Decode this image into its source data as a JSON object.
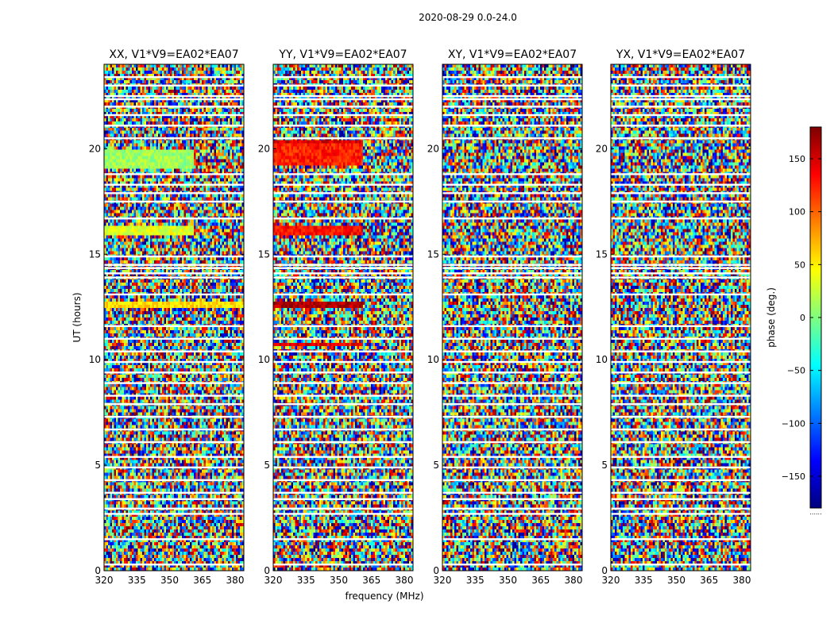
{
  "chart_data": {
    "type": "heatmap",
    "suptitle": "2020-08-29 0.0-24.0",
    "xlabel": "frequency (MHz)",
    "ylabel": "UT (hours)",
    "xlim": [
      320,
      384
    ],
    "ylim": [
      0,
      24
    ],
    "x_ticks": [
      320,
      335,
      350,
      365,
      380
    ],
    "y_ticks": [
      0,
      5,
      10,
      15,
      20
    ],
    "panels": [
      {
        "title": "XX, V1*V9=EA02*EA07",
        "coherent_bands": [
          {
            "ut": [
              19.0,
              20.0
            ],
            "freq": [
              320,
              361
            ],
            "phase": 10
          },
          {
            "ut": [
              15.9,
              16.3
            ],
            "freq": [
              320,
              361
            ],
            "phase": 35
          },
          {
            "ut": [
              12.4,
              12.7
            ],
            "freq": [
              320,
              384
            ],
            "phase": 55
          }
        ]
      },
      {
        "title": "YY, V1*V9=EA02*EA07",
        "coherent_bands": [
          {
            "ut": [
              20.2,
              20.4
            ],
            "freq": [
              320,
              361
            ],
            "phase": 150
          },
          {
            "ut": [
              19.2,
              20.2
            ],
            "freq": [
              320,
              361
            ],
            "phase": 125
          },
          {
            "ut": [
              15.9,
              16.4
            ],
            "freq": [
              320,
              361
            ],
            "phase": 130
          },
          {
            "ut": [
              12.4,
              12.7
            ],
            "freq": [
              320,
              361
            ],
            "phase": 165
          },
          {
            "ut": [
              10.6,
              10.8
            ],
            "freq": [
              320,
              361
            ],
            "phase": 140
          }
        ]
      },
      {
        "title": "XY, V1*V9=EA02*EA07",
        "coherent_bands": []
      },
      {
        "title": "YX, V1*V9=EA02*EA07",
        "coherent_bands": []
      }
    ],
    "flagged_ut_hours": [
      0.3,
      1.5,
      2.7,
      2.95,
      3.4,
      3.7,
      4.3,
      4.9,
      5.4,
      6.1,
      6.7,
      7.3,
      7.9,
      8.3,
      8.9,
      9.4,
      9.9,
      10.4,
      11.0,
      11.6,
      13.1,
      13.9,
      14.1,
      14.35,
      14.5,
      14.9,
      16.7,
      17.5,
      17.9,
      18.3,
      18.8,
      20.5,
      21.1,
      21.6,
      22.0,
      22.35,
      22.5,
      23.0,
      23.4
    ],
    "colorbar": {
      "label": "phase (deg.)",
      "range": [
        -180,
        180
      ],
      "ticks": [
        -150,
        -100,
        -50,
        0,
        50,
        100,
        150
      ],
      "tick_labels": [
        "−150",
        "−100",
        "−50",
        "0",
        "50",
        "100",
        "150"
      ],
      "colormap": [
        "#00007f",
        "#0000ff",
        "#007fff",
        "#00ffff",
        "#7fff7f",
        "#ffff00",
        "#ff7f00",
        "#ff0000",
        "#7f0000"
      ],
      "under_label": "......"
    },
    "colors": {
      "flag": "#ffffff",
      "axes": "#000000",
      "background": "#ffffff"
    }
  }
}
